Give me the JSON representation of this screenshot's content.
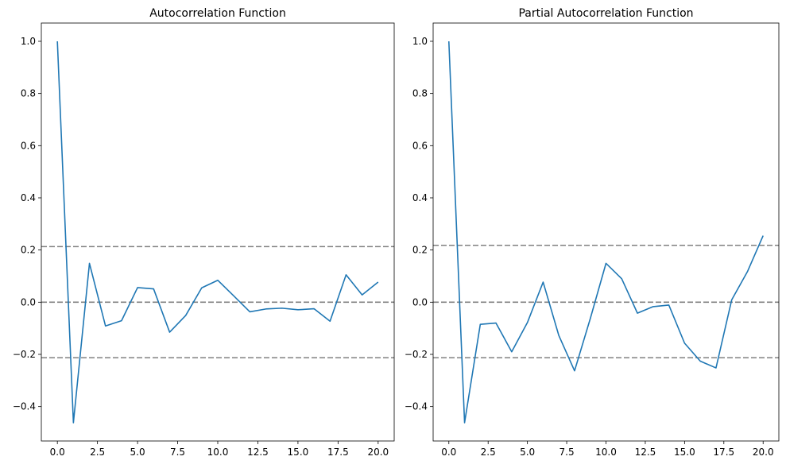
{
  "chart_data": [
    {
      "type": "line",
      "title": "Autocorrelation Function",
      "xlabel": "",
      "ylabel": "",
      "xlim": [
        -1,
        21
      ],
      "ylim": [
        -0.532,
        1.07
      ],
      "xticks": [
        0,
        2.5,
        5,
        7.5,
        10,
        12.5,
        15,
        17.5,
        20
      ],
      "xtick_labels": [
        "0.0",
        "2.5",
        "5.0",
        "7.5",
        "10.0",
        "12.5",
        "15.0",
        "17.5",
        "20.0"
      ],
      "yticks": [
        -0.4,
        -0.2,
        0,
        0.2,
        0.4,
        0.6,
        0.8,
        1.0
      ],
      "ytick_labels": [
        "−0.4",
        "−0.2",
        "0.0",
        "0.2",
        "0.4",
        "0.6",
        "0.8",
        "1.0"
      ],
      "grid": false,
      "series": [
        {
          "color": "#1f77b4",
          "x": [
            0,
            1,
            2,
            3,
            4,
            5,
            6,
            7,
            8,
            9,
            10,
            11,
            12,
            13,
            14,
            15,
            16,
            17,
            18,
            19,
            20
          ],
          "values": [
            1.0,
            -0.462,
            0.149,
            -0.091,
            -0.071,
            0.056,
            0.051,
            -0.115,
            -0.051,
            0.055,
            0.084,
            0.024,
            -0.037,
            -0.026,
            -0.023,
            -0.029,
            -0.025,
            -0.073,
            0.105,
            0.028,
            0.077
          ]
        }
      ],
      "reference_lines": [
        {
          "y": 0.213,
          "color": "#808080",
          "style": "dashed"
        },
        {
          "y": 0.0,
          "color": "#808080",
          "style": "dashed"
        },
        {
          "y": -0.213,
          "color": "#808080",
          "style": "dashed"
        }
      ]
    },
    {
      "type": "line",
      "title": "Partial Autocorrelation Function",
      "xlabel": "",
      "ylabel": "",
      "xlim": [
        -1,
        21
      ],
      "ylim": [
        -0.532,
        1.07
      ],
      "xticks": [
        0,
        2.5,
        5,
        7.5,
        10,
        12.5,
        15,
        17.5,
        20
      ],
      "xtick_labels": [
        "0.0",
        "2.5",
        "5.0",
        "7.5",
        "10.0",
        "12.5",
        "15.0",
        "17.5",
        "20.0"
      ],
      "yticks": [
        -0.4,
        -0.2,
        0,
        0.2,
        0.4,
        0.6,
        0.8,
        1.0
      ],
      "ytick_labels": [
        "−0.4",
        "−0.2",
        "0.0",
        "0.2",
        "0.4",
        "0.6",
        "0.8",
        "1.0"
      ],
      "grid": false,
      "series": [
        {
          "color": "#1f77b4",
          "x": [
            0,
            1,
            2,
            3,
            4,
            5,
            6,
            7,
            8,
            9,
            10,
            11,
            12,
            13,
            14,
            15,
            16,
            17,
            18,
            19,
            20
          ],
          "values": [
            1.0,
            -0.462,
            -0.085,
            -0.08,
            -0.19,
            -0.078,
            0.077,
            -0.128,
            -0.263,
            -0.063,
            0.149,
            0.09,
            -0.042,
            -0.017,
            -0.011,
            -0.157,
            -0.226,
            -0.252,
            0.009,
            0.117,
            0.255
          ]
        }
      ],
      "reference_lines": [
        {
          "y": 0.218,
          "color": "#808080",
          "style": "dashed"
        },
        {
          "y": 0.0,
          "color": "#808080",
          "style": "dashed"
        },
        {
          "y": -0.213,
          "color": "#808080",
          "style": "dashed"
        }
      ]
    }
  ]
}
